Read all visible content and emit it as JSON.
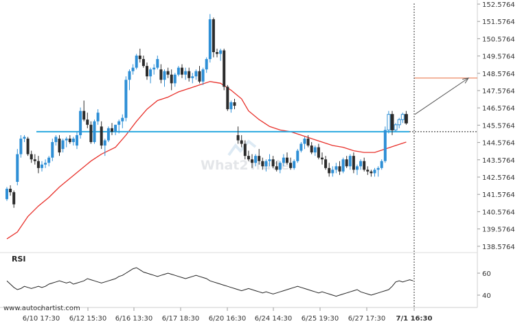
{
  "chart_data": {
    "type": "candlestick",
    "title": "",
    "watermark": "What2Trade",
    "source": "www.autochartist.com",
    "y_axis": {
      "min": 138.0764,
      "max": 152.8264,
      "ticks": [
        "152.5764",
        "151.5764",
        "150.5764",
        "149.5764",
        "148.5764",
        "147.5764",
        "146.5764",
        "145.5764",
        "144.5764",
        "143.5764",
        "142.5764",
        "141.5764",
        "140.5764",
        "139.5764",
        "138.5764"
      ]
    },
    "x_axis": {
      "ticks": [
        "6/10 17:30",
        "6/12 15:30",
        "6/16 13:30",
        "6/17 18:30",
        "6/20 16:30",
        "6/24 14:30",
        "6/25 19:30",
        "6/27 17:30",
        "7/1 16:30"
      ],
      "highlighted_tick": "7/1 16:30"
    },
    "colors": {
      "up": "#2e8fd6",
      "down": "#2b2b2b",
      "moving_average": "#e8302a",
      "level_line": "#29a8e0",
      "forecast_line": "#e86a3c",
      "arrow": "#555555",
      "rsi": "#222222"
    },
    "level_line": {
      "value": 145.2
    },
    "forecast_level": {
      "value": 148.3
    },
    "arrow": {
      "from_value": 146.2,
      "to_value": 148.3
    },
    "candles": [
      [
        141.3,
        142.0,
        141.2,
        141.9
      ],
      [
        141.9,
        142.1,
        141.5,
        141.7
      ],
      [
        141.7,
        141.8,
        140.8,
        141.0
      ],
      [
        142.3,
        144.2,
        142.1,
        143.9
      ],
      [
        143.9,
        145.0,
        143.7,
        144.8
      ],
      [
        144.8,
        145.0,
        144.6,
        144.9
      ],
      [
        144.8,
        144.9,
        143.8,
        143.9
      ],
      [
        143.9,
        144.1,
        143.4,
        143.6
      ],
      [
        143.6,
        143.9,
        143.3,
        143.5
      ],
      [
        143.5,
        143.8,
        142.8,
        143.1
      ],
      [
        143.1,
        143.5,
        142.9,
        143.3
      ],
      [
        143.3,
        143.6,
        143.1,
        143.4
      ],
      [
        143.4,
        143.8,
        143.2,
        143.7
      ],
      [
        143.7,
        144.8,
        143.5,
        144.6
      ],
      [
        144.6,
        145.0,
        144.4,
        144.9
      ],
      [
        144.8,
        145.0,
        143.8,
        144.0
      ],
      [
        144.2,
        144.8,
        144.0,
        144.7
      ],
      [
        144.7,
        144.9,
        144.3,
        144.8
      ],
      [
        144.8,
        145.0,
        144.5,
        144.6
      ],
      [
        144.6,
        144.9,
        144.4,
        144.8
      ],
      [
        144.4,
        145.2,
        144.2,
        145.0
      ],
      [
        145.0,
        146.6,
        144.8,
        146.4
      ],
      [
        146.4,
        147.0,
        145.8,
        145.9
      ],
      [
        145.9,
        146.3,
        145.4,
        145.6
      ],
      [
        145.6,
        145.8,
        144.5,
        144.6
      ],
      [
        144.6,
        145.9,
        144.5,
        145.8
      ],
      [
        145.8,
        146.5,
        145.6,
        146.3
      ],
      [
        145.5,
        145.8,
        144.2,
        144.4
      ],
      [
        144.4,
        144.8,
        143.8,
        144.7
      ],
      [
        144.7,
        145.5,
        144.6,
        145.4
      ],
      [
        145.4,
        145.7,
        145.0,
        145.2
      ],
      [
        145.2,
        145.6,
        145.0,
        145.6
      ],
      [
        145.6,
        145.9,
        145.1,
        145.8
      ],
      [
        145.8,
        146.2,
        145.4,
        146.0
      ],
      [
        146.0,
        148.4,
        145.8,
        148.2
      ],
      [
        148.2,
        148.8,
        147.6,
        148.7
      ],
      [
        148.7,
        149.1,
        148.5,
        148.9
      ],
      [
        148.9,
        149.7,
        148.8,
        149.6
      ],
      [
        149.6,
        150.0,
        149.2,
        149.4
      ],
      [
        149.4,
        149.6,
        148.9,
        149.0
      ],
      [
        149.0,
        149.2,
        148.2,
        148.4
      ],
      [
        148.4,
        148.9,
        148.0,
        148.8
      ],
      [
        148.8,
        149.1,
        148.5,
        148.9
      ],
      [
        148.9,
        149.6,
        148.8,
        149.4
      ],
      [
        148.8,
        149.1,
        148.0,
        148.2
      ],
      [
        148.2,
        148.8,
        147.8,
        148.7
      ],
      [
        148.7,
        148.9,
        148.3,
        148.5
      ],
      [
        148.5,
        148.8,
        147.6,
        148.0
      ],
      [
        148.0,
        148.6,
        147.8,
        148.5
      ],
      [
        148.5,
        149.0,
        148.4,
        148.9
      ],
      [
        148.9,
        149.1,
        148.3,
        148.5
      ],
      [
        148.5,
        148.9,
        148.2,
        148.7
      ],
      [
        148.7,
        148.9,
        148.1,
        148.3
      ],
      [
        148.3,
        148.6,
        148.0,
        148.4
      ],
      [
        148.4,
        148.8,
        148.2,
        148.7
      ],
      [
        148.7,
        149.0,
        148.0,
        148.1
      ],
      [
        148.1,
        148.9,
        147.9,
        148.8
      ],
      [
        148.8,
        149.5,
        148.6,
        149.4
      ],
      [
        149.4,
        152.0,
        149.2,
        151.7
      ],
      [
        151.7,
        151.8,
        149.5,
        149.8
      ],
      [
        149.8,
        150.0,
        149.5,
        149.7
      ],
      [
        149.7,
        150.0,
        149.3,
        149.9
      ],
      [
        149.9,
        150.0,
        147.6,
        147.8
      ],
      [
        147.8,
        147.9,
        146.4,
        146.5
      ],
      [
        146.5,
        147.0,
        146.3,
        146.9
      ],
      [
        146.9,
        147.1,
        146.5,
        146.7
      ],
      [
        145.0,
        145.5,
        144.5,
        144.7
      ],
      [
        144.7,
        145.0,
        144.3,
        144.5
      ],
      [
        144.5,
        144.7,
        143.6,
        143.8
      ],
      [
        143.8,
        144.1,
        143.5,
        143.6
      ],
      [
        143.6,
        143.9,
        143.1,
        143.4
      ],
      [
        143.4,
        143.9,
        143.2,
        143.8
      ],
      [
        143.8,
        144.2,
        143.3,
        143.5
      ],
      [
        143.5,
        143.7,
        143.0,
        143.2
      ],
      [
        143.2,
        143.6,
        142.9,
        143.5
      ],
      [
        143.5,
        143.9,
        143.2,
        143.6
      ],
      [
        143.6,
        143.8,
        143.1,
        143.2
      ],
      [
        143.2,
        143.5,
        142.9,
        143.0
      ],
      [
        143.0,
        143.5,
        142.8,
        143.4
      ],
      [
        143.4,
        143.9,
        143.2,
        143.7
      ],
      [
        143.7,
        144.0,
        143.3,
        143.4
      ],
      [
        143.4,
        143.7,
        143.0,
        143.1
      ],
      [
        143.1,
        143.6,
        143.0,
        143.5
      ],
      [
        143.5,
        144.2,
        143.4,
        144.1
      ],
      [
        144.1,
        144.6,
        144.0,
        144.5
      ],
      [
        144.5,
        144.9,
        144.2,
        144.8
      ],
      [
        144.8,
        145.0,
        144.3,
        144.4
      ],
      [
        144.4,
        144.6,
        143.9,
        144.0
      ],
      [
        144.0,
        144.4,
        143.8,
        144.3
      ],
      [
        144.3,
        144.5,
        143.6,
        143.7
      ],
      [
        143.7,
        144.0,
        143.3,
        143.6
      ],
      [
        143.6,
        143.8,
        143.0,
        143.1
      ],
      [
        143.1,
        143.4,
        142.6,
        142.8
      ],
      [
        142.8,
        143.2,
        142.6,
        143.0
      ],
      [
        143.0,
        143.4,
        142.8,
        143.2
      ],
      [
        143.2,
        143.5,
        142.7,
        142.9
      ],
      [
        142.9,
        143.7,
        142.8,
        143.6
      ],
      [
        143.6,
        143.8,
        143.1,
        143.2
      ],
      [
        143.2,
        143.9,
        143.0,
        143.8
      ],
      [
        143.8,
        144.0,
        142.8,
        143.0
      ],
      [
        143.0,
        143.3,
        142.7,
        143.2
      ],
      [
        143.2,
        143.6,
        143.0,
        143.5
      ],
      [
        143.5,
        143.7,
        142.9,
        143.0
      ],
      [
        143.0,
        143.2,
        142.7,
        142.9
      ],
      [
        142.9,
        143.0,
        142.6,
        142.8
      ],
      [
        142.8,
        143.1,
        142.6,
        143.0
      ],
      [
        143.0,
        143.2,
        142.6,
        143.1
      ],
      [
        143.1,
        143.6,
        143.0,
        143.5
      ],
      [
        143.5,
        145.5,
        143.4,
        145.3
      ],
      [
        145.3,
        146.4,
        145.1,
        146.2
      ],
      [
        146.2,
        146.4,
        145.0,
        145.3
      ],
      [
        145.3,
        145.7,
        145.2,
        145.6
      ],
      [
        145.6,
        146.0,
        145.4,
        145.9
      ],
      [
        145.9,
        146.3,
        145.7,
        146.2
      ],
      [
        146.2,
        146.4,
        145.6,
        145.7
      ]
    ],
    "moving_average": [
      [
        139.0,
        0
      ],
      [
        139.4,
        3
      ],
      [
        140.3,
        6
      ],
      [
        140.9,
        9
      ],
      [
        141.4,
        12
      ],
      [
        142.0,
        15
      ],
      [
        142.5,
        18
      ],
      [
        143.0,
        21
      ],
      [
        143.5,
        24
      ],
      [
        143.9,
        27
      ],
      [
        144.3,
        31
      ],
      [
        145.0,
        34
      ],
      [
        145.8,
        37
      ],
      [
        146.5,
        40
      ],
      [
        147.0,
        43
      ],
      [
        147.2,
        46
      ],
      [
        147.5,
        49
      ],
      [
        147.7,
        52
      ],
      [
        147.9,
        55
      ],
      [
        148.1,
        58
      ],
      [
        148.0,
        61
      ],
      [
        147.6,
        64
      ],
      [
        147.1,
        67
      ],
      [
        146.4,
        69
      ],
      [
        145.9,
        72
      ],
      [
        145.5,
        75
      ],
      [
        145.3,
        78
      ],
      [
        145.2,
        81
      ],
      [
        145.0,
        84
      ],
      [
        144.8,
        87
      ],
      [
        144.6,
        90
      ],
      [
        144.4,
        93
      ],
      [
        144.3,
        96
      ],
      [
        144.1,
        99
      ],
      [
        144.0,
        102
      ],
      [
        144.0,
        105
      ],
      [
        144.2,
        108
      ],
      [
        144.4,
        111
      ],
      [
        144.6,
        114
      ]
    ],
    "rsi": {
      "label": "RSI",
      "ticks": [
        "60",
        "40"
      ],
      "range": [
        30,
        75
      ],
      "values": [
        53,
        50,
        47,
        45,
        46,
        48,
        47,
        46,
        47,
        48,
        47,
        48,
        50,
        51,
        52,
        53,
        52,
        51,
        52,
        50,
        51,
        52,
        53,
        55,
        54,
        53,
        52,
        51,
        52,
        53,
        54,
        55,
        57,
        58,
        60,
        62,
        64,
        65,
        63,
        61,
        60,
        59,
        58,
        57,
        58,
        59,
        60,
        59,
        58,
        57,
        56,
        55,
        56,
        57,
        58,
        57,
        56,
        55,
        53,
        52,
        51,
        50,
        49,
        48,
        47,
        46,
        45,
        44,
        45,
        46,
        45,
        44,
        43,
        42,
        43,
        42,
        41,
        42,
        43,
        44,
        45,
        46,
        47,
        48,
        47,
        46,
        45,
        44,
        43,
        42,
        43,
        42,
        41,
        40,
        39,
        40,
        41,
        42,
        43,
        44,
        45,
        43,
        42,
        41,
        40,
        41,
        42,
        43,
        44,
        45,
        48,
        52,
        53,
        52,
        53,
        54,
        53
      ]
    }
  }
}
